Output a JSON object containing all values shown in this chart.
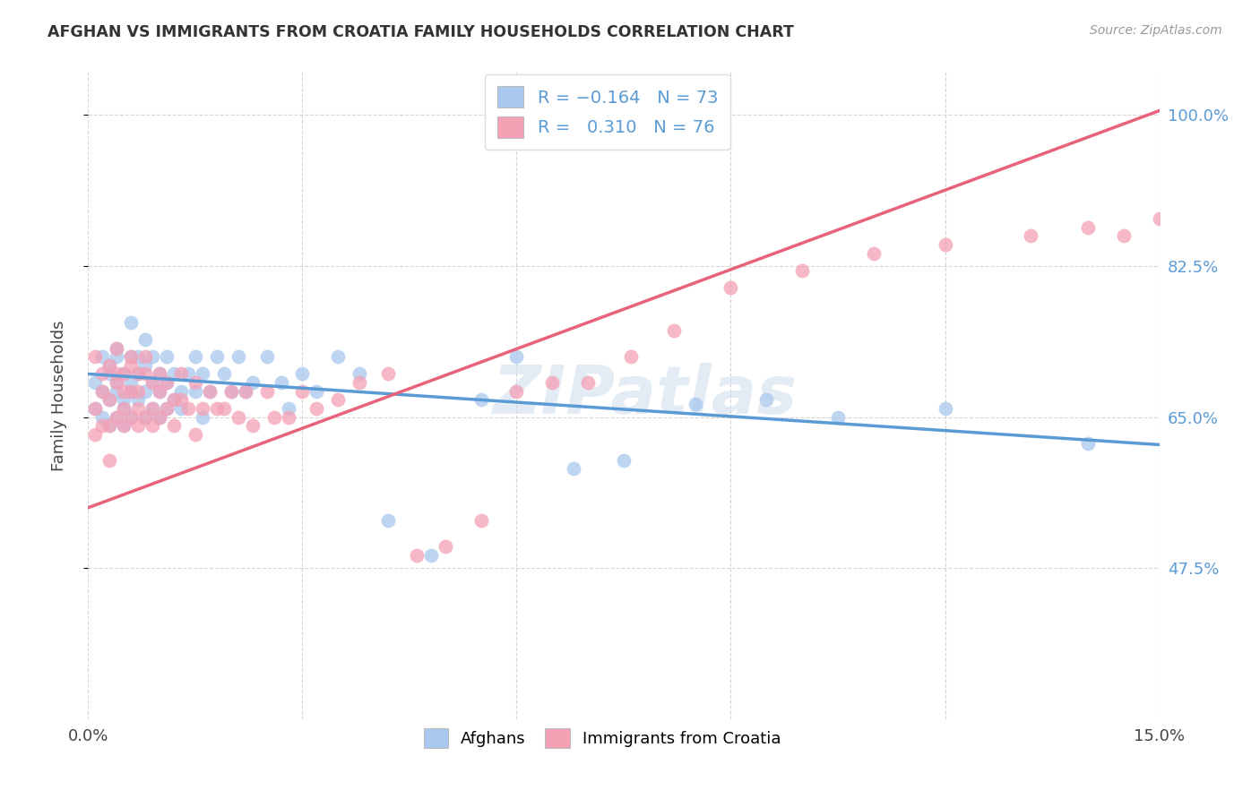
{
  "title": "AFGHAN VS IMMIGRANTS FROM CROATIA FAMILY HOUSEHOLDS CORRELATION CHART",
  "source": "Source: ZipAtlas.com",
  "ylabel": "Family Households",
  "x_min": 0.0,
  "x_max": 0.15,
  "y_min": 0.3,
  "y_max": 1.05,
  "y_ticks": [
    0.475,
    0.65,
    0.825,
    1.0
  ],
  "y_tick_labels": [
    "47.5%",
    "65.0%",
    "82.5%",
    "100.0%"
  ],
  "blue_color": "#A8C8EE",
  "pink_color": "#F4A0B5",
  "blue_line_color": "#5B9BD5",
  "pink_line_color": "#E8637A",
  "watermark": "ZIPatlas",
  "legend_label_blue": "Afghans",
  "legend_label_pink": "Immigrants from Croatia",
  "blue_line_x0": 0.0,
  "blue_line_y0": 0.7,
  "blue_line_x1": 0.15,
  "blue_line_y1": 0.618,
  "pink_line_x0": 0.0,
  "pink_line_y0": 0.545,
  "pink_line_x1": 0.15,
  "pink_line_y1": 1.005,
  "blue_scatter_x": [
    0.001,
    0.001,
    0.002,
    0.002,
    0.002,
    0.003,
    0.003,
    0.003,
    0.003,
    0.004,
    0.004,
    0.004,
    0.004,
    0.004,
    0.005,
    0.005,
    0.005,
    0.005,
    0.006,
    0.006,
    0.006,
    0.006,
    0.006,
    0.007,
    0.007,
    0.007,
    0.008,
    0.008,
    0.008,
    0.008,
    0.009,
    0.009,
    0.009,
    0.01,
    0.01,
    0.01,
    0.011,
    0.011,
    0.011,
    0.012,
    0.012,
    0.013,
    0.013,
    0.014,
    0.015,
    0.015,
    0.016,
    0.016,
    0.017,
    0.018,
    0.019,
    0.02,
    0.021,
    0.022,
    0.023,
    0.025,
    0.027,
    0.028,
    0.03,
    0.032,
    0.035,
    0.038,
    0.042,
    0.048,
    0.055,
    0.06,
    0.068,
    0.075,
    0.085,
    0.095,
    0.105,
    0.12,
    0.14
  ],
  "blue_scatter_y": [
    0.69,
    0.66,
    0.72,
    0.65,
    0.68,
    0.71,
    0.67,
    0.64,
    0.7,
    0.68,
    0.72,
    0.65,
    0.69,
    0.73,
    0.67,
    0.7,
    0.64,
    0.66,
    0.68,
    0.72,
    0.65,
    0.69,
    0.76,
    0.67,
    0.7,
    0.72,
    0.65,
    0.68,
    0.71,
    0.74,
    0.66,
    0.69,
    0.72,
    0.65,
    0.68,
    0.7,
    0.66,
    0.69,
    0.72,
    0.67,
    0.7,
    0.68,
    0.66,
    0.7,
    0.72,
    0.68,
    0.65,
    0.7,
    0.68,
    0.72,
    0.7,
    0.68,
    0.72,
    0.68,
    0.69,
    0.72,
    0.69,
    0.66,
    0.7,
    0.68,
    0.72,
    0.7,
    0.53,
    0.49,
    0.67,
    0.72,
    0.59,
    0.6,
    0.665,
    0.67,
    0.65,
    0.66,
    0.62
  ],
  "pink_scatter_x": [
    0.001,
    0.001,
    0.001,
    0.002,
    0.002,
    0.002,
    0.003,
    0.003,
    0.003,
    0.003,
    0.004,
    0.004,
    0.004,
    0.004,
    0.005,
    0.005,
    0.005,
    0.005,
    0.006,
    0.006,
    0.006,
    0.006,
    0.007,
    0.007,
    0.007,
    0.007,
    0.008,
    0.008,
    0.008,
    0.009,
    0.009,
    0.009,
    0.01,
    0.01,
    0.01,
    0.011,
    0.011,
    0.012,
    0.012,
    0.013,
    0.013,
    0.014,
    0.015,
    0.015,
    0.016,
    0.017,
    0.018,
    0.019,
    0.02,
    0.021,
    0.022,
    0.023,
    0.025,
    0.026,
    0.028,
    0.03,
    0.032,
    0.035,
    0.038,
    0.042,
    0.046,
    0.05,
    0.055,
    0.06,
    0.065,
    0.07,
    0.076,
    0.082,
    0.09,
    0.1,
    0.11,
    0.12,
    0.132,
    0.14,
    0.145,
    0.15
  ],
  "pink_scatter_y": [
    0.72,
    0.66,
    0.63,
    0.7,
    0.68,
    0.64,
    0.71,
    0.67,
    0.64,
    0.6,
    0.69,
    0.65,
    0.7,
    0.73,
    0.66,
    0.7,
    0.64,
    0.68,
    0.71,
    0.65,
    0.68,
    0.72,
    0.66,
    0.7,
    0.64,
    0.68,
    0.65,
    0.7,
    0.72,
    0.66,
    0.69,
    0.64,
    0.68,
    0.65,
    0.7,
    0.66,
    0.69,
    0.67,
    0.64,
    0.7,
    0.67,
    0.66,
    0.69,
    0.63,
    0.66,
    0.68,
    0.66,
    0.66,
    0.68,
    0.65,
    0.68,
    0.64,
    0.68,
    0.65,
    0.65,
    0.68,
    0.66,
    0.67,
    0.69,
    0.7,
    0.49,
    0.5,
    0.53,
    0.68,
    0.69,
    0.69,
    0.72,
    0.75,
    0.8,
    0.82,
    0.84,
    0.85,
    0.86,
    0.87,
    0.86,
    0.88
  ]
}
